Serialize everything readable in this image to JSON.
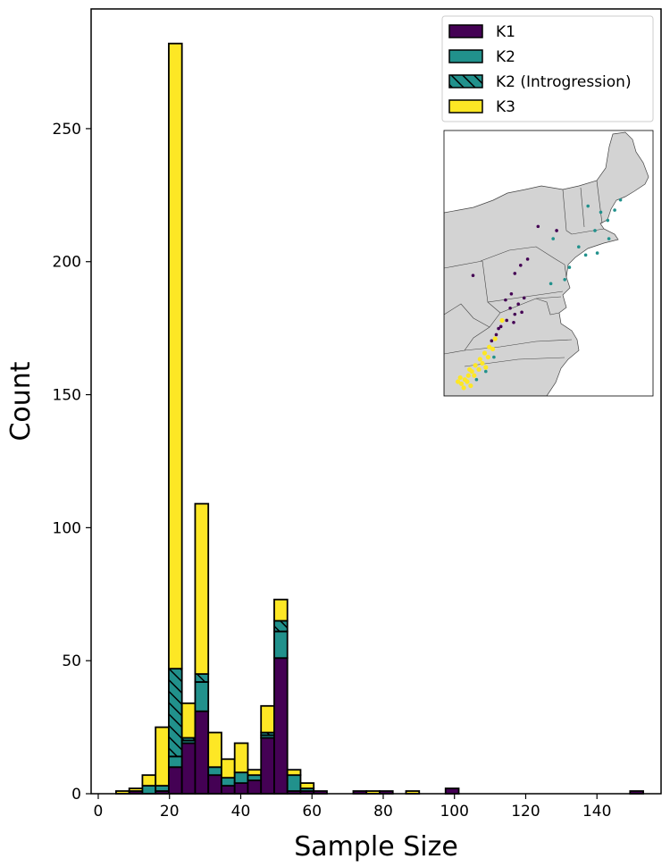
{
  "chart_data": {
    "type": "bar",
    "stacked": true,
    "xlabel": "Sample Size",
    "ylabel": "Count",
    "xlim": [
      -2,
      158
    ],
    "ylim": [
      0,
      295
    ],
    "xticks": [
      0,
      20,
      40,
      60,
      80,
      100,
      120,
      140
    ],
    "yticks": [
      0,
      50,
      100,
      150,
      200,
      250
    ],
    "bin_width": 3.7,
    "bin_lefts": [
      5.0,
      8.7,
      12.4,
      16.1,
      19.8,
      23.5,
      27.2,
      30.9,
      34.6,
      38.3,
      42.0,
      45.7,
      49.4,
      53.1,
      56.8,
      60.5,
      71.6,
      75.3,
      79.0,
      86.4,
      97.5,
      149.3
    ],
    "series": [
      {
        "name": "K1",
        "values": [
          0,
          1,
          0,
          1,
          10,
          19,
          31,
          7,
          3,
          4,
          5,
          21,
          51,
          1,
          1,
          1,
          1,
          0,
          1,
          0,
          2,
          1
        ]
      },
      {
        "name": "K2",
        "values": [
          0,
          0,
          3,
          2,
          4,
          1,
          11,
          3,
          3,
          4,
          2,
          1,
          10,
          6,
          1,
          0,
          0,
          0,
          0,
          0,
          0,
          0
        ]
      },
      {
        "name": "K2 (Introgression)",
        "values": [
          0,
          0,
          0,
          0,
          33,
          1,
          3,
          0,
          0,
          0,
          0,
          1,
          4,
          0,
          0,
          0,
          0,
          0,
          0,
          0,
          0,
          0
        ]
      },
      {
        "name": "K3",
        "values": [
          1,
          1,
          4,
          22,
          235,
          13,
          64,
          13,
          7,
          11,
          2,
          10,
          8,
          2,
          2,
          0,
          0,
          1,
          0,
          1,
          0,
          0
        ]
      }
    ],
    "colors": {
      "K1": "#440154",
      "K2": "#21918c",
      "K2 (Introgression)": "#21918c",
      "K3": "#fde725"
    },
    "hatch_series": "K2 (Introgression)",
    "legend": {
      "position": "top-right",
      "entries": [
        "K1",
        "K2",
        "K2 (Introgression)",
        "K3"
      ]
    },
    "inset_map": {
      "region": "Northeastern United States",
      "land_color": "#d3d3d3",
      "points": [
        {
          "cluster": "K2",
          "lon": -70.3,
          "lat": 43.7
        },
        {
          "cluster": "K2",
          "lon": -69.8,
          "lat": 44.2
        },
        {
          "cluster": "K2",
          "lon": -70.9,
          "lat": 43.2
        },
        {
          "cluster": "K2",
          "lon": -71.5,
          "lat": 43.6
        },
        {
          "cluster": "K2",
          "lon": -72.6,
          "lat": 43.9
        },
        {
          "cluster": "K2",
          "lon": -72.0,
          "lat": 42.7
        },
        {
          "cluster": "K2",
          "lon": -73.4,
          "lat": 41.9
        },
        {
          "cluster": "K2",
          "lon": -72.8,
          "lat": 41.5
        },
        {
          "cluster": "K2",
          "lon": -71.8,
          "lat": 41.6
        },
        {
          "cluster": "K2",
          "lon": -74.2,
          "lat": 40.9
        },
        {
          "cluster": "K2",
          "lon": -74.6,
          "lat": 40.3
        },
        {
          "cluster": "K2",
          "lon": -75.8,
          "lat": 40.1
        },
        {
          "cluster": "K2",
          "lon": -75.6,
          "lat": 42.3
        },
        {
          "cluster": "K2",
          "lon": -70.8,
          "lat": 42.3
        },
        {
          "cluster": "K2",
          "lon": -81.4,
          "lat": 35.8
        },
        {
          "cluster": "K2",
          "lon": -80.7,
          "lat": 36.5
        },
        {
          "cluster": "K2",
          "lon": -82.2,
          "lat": 35.4
        },
        {
          "cluster": "K1",
          "lon": -76.9,
          "lat": 42.9
        },
        {
          "cluster": "K1",
          "lon": -75.3,
          "lat": 42.7
        },
        {
          "cluster": "K1",
          "lon": -77.8,
          "lat": 41.3
        },
        {
          "cluster": "K1",
          "lon": -78.4,
          "lat": 41.0
        },
        {
          "cluster": "K1",
          "lon": -78.9,
          "lat": 40.6
        },
        {
          "cluster": "K1",
          "lon": -82.5,
          "lat": 40.5
        },
        {
          "cluster": "K1",
          "lon": -79.2,
          "lat": 39.6
        },
        {
          "cluster": "K1",
          "lon": -79.7,
          "lat": 39.3
        },
        {
          "cluster": "K1",
          "lon": -78.6,
          "lat": 39.1
        },
        {
          "cluster": "K1",
          "lon": -79.3,
          "lat": 38.9
        },
        {
          "cluster": "K1",
          "lon": -78.9,
          "lat": 38.6
        },
        {
          "cluster": "K1",
          "lon": -78.3,
          "lat": 38.7
        },
        {
          "cluster": "K1",
          "lon": -79.6,
          "lat": 38.3
        },
        {
          "cluster": "K1",
          "lon": -80.1,
          "lat": 38.0
        },
        {
          "cluster": "K1",
          "lon": -80.5,
          "lat": 37.6
        },
        {
          "cluster": "K1",
          "lon": -80.9,
          "lat": 37.3
        },
        {
          "cluster": "K1",
          "lon": -79.0,
          "lat": 38.2
        },
        {
          "cluster": "K1",
          "lon": -78.1,
          "lat": 39.4
        },
        {
          "cluster": "K1",
          "lon": -80.3,
          "lat": 37.9
        },
        {
          "cluster": "K3",
          "lon": -80.0,
          "lat": 38.3
        },
        {
          "cluster": "K3",
          "lon": -80.6,
          "lat": 37.4
        },
        {
          "cluster": "K3",
          "lon": -81.1,
          "lat": 37.0
        },
        {
          "cluster": "K3",
          "lon": -81.5,
          "lat": 36.7
        },
        {
          "cluster": "K3",
          "lon": -81.9,
          "lat": 36.4
        },
        {
          "cluster": "K3",
          "lon": -82.3,
          "lat": 36.1
        },
        {
          "cluster": "K3",
          "lon": -82.6,
          "lat": 35.8
        },
        {
          "cluster": "K3",
          "lon": -82.9,
          "lat": 35.6
        },
        {
          "cluster": "K3",
          "lon": -83.2,
          "lat": 35.4
        },
        {
          "cluster": "K3",
          "lon": -83.5,
          "lat": 35.2
        },
        {
          "cluster": "K3",
          "lon": -83.0,
          "lat": 35.3
        },
        {
          "cluster": "K3",
          "lon": -82.7,
          "lat": 35.1
        },
        {
          "cluster": "K3",
          "lon": -83.3,
          "lat": 35.0
        },
        {
          "cluster": "K3",
          "lon": -82.0,
          "lat": 35.9
        },
        {
          "cluster": "K3",
          "lon": -81.7,
          "lat": 36.2
        },
        {
          "cluster": "K3",
          "lon": -81.2,
          "lat": 36.5
        },
        {
          "cluster": "K3",
          "lon": -80.8,
          "lat": 36.9
        },
        {
          "cluster": "K3",
          "lon": -83.6,
          "lat": 35.5
        },
        {
          "cluster": "K3",
          "lon": -82.4,
          "lat": 35.6
        },
        {
          "cluster": "K3",
          "lon": -83.8,
          "lat": 35.3
        },
        {
          "cluster": "K3",
          "lon": -82.8,
          "lat": 35.9
        },
        {
          "cluster": "K3",
          "lon": -81.4,
          "lat": 36.0
        }
      ]
    }
  }
}
